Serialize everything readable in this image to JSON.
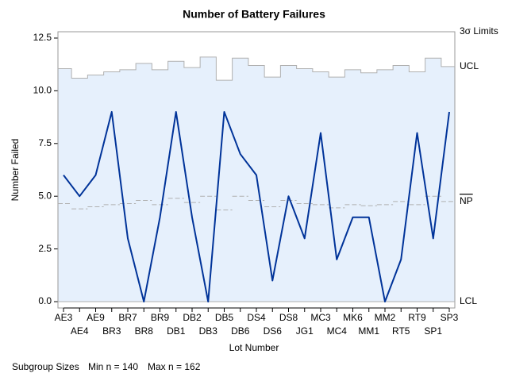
{
  "chart_data": {
    "type": "np-chart",
    "title": "Number of Battery Failures",
    "x_label": "Lot Number",
    "y_label": "Number Failed",
    "categories": [
      "AE3",
      "AE4",
      "AE9",
      "BR3",
      "BR7",
      "BR8",
      "BR9",
      "DB1",
      "DB2",
      "DB3",
      "DB5",
      "DB6",
      "DS4",
      "DS6",
      "DS8",
      "JG1",
      "MC3",
      "MC4",
      "MK6",
      "MM1",
      "MM2",
      "RT5",
      "RT9",
      "SP1",
      "SP3"
    ],
    "values": [
      6,
      5,
      6,
      9,
      3,
      0,
      4,
      9,
      4,
      0,
      9,
      7,
      6,
      1,
      5,
      3,
      8,
      2,
      4,
      4,
      0,
      2,
      8,
      3,
      9
    ],
    "color": "#003399",
    "ucl": [
      11.05,
      10.6,
      10.75,
      10.9,
      11.0,
      11.3,
      11.0,
      11.4,
      11.1,
      11.6,
      10.5,
      11.55,
      11.2,
      10.65,
      11.2,
      11.05,
      10.9,
      10.65,
      11.0,
      10.85,
      11.0,
      11.2,
      10.9,
      11.55,
      11.15
    ],
    "center": [
      4.65,
      4.4,
      4.5,
      4.6,
      4.65,
      4.8,
      4.6,
      4.9,
      4.7,
      5.0,
      4.35,
      5.0,
      4.8,
      4.5,
      4.8,
      4.65,
      4.6,
      4.45,
      4.6,
      4.55,
      4.6,
      4.75,
      4.6,
      5.0,
      4.75
    ],
    "lcl": 0,
    "limits_label": "3σ Limits",
    "ucl_label": "UCL",
    "center_label": "NP",
    "lcl_label": "LCL",
    "footer": {
      "label": "Subgroup Sizes",
      "min": "Min n = 140",
      "max": "Max n = 162"
    },
    "ylim": [
      -0.3,
      12.8
    ],
    "yticks": [
      {
        "value": 0,
        "label": "0.0"
      },
      2.5,
      {
        "value": 5,
        "label": "5.0"
      },
      7.5,
      {
        "value": 10,
        "label": "10.0"
      },
      12.5
    ]
  }
}
